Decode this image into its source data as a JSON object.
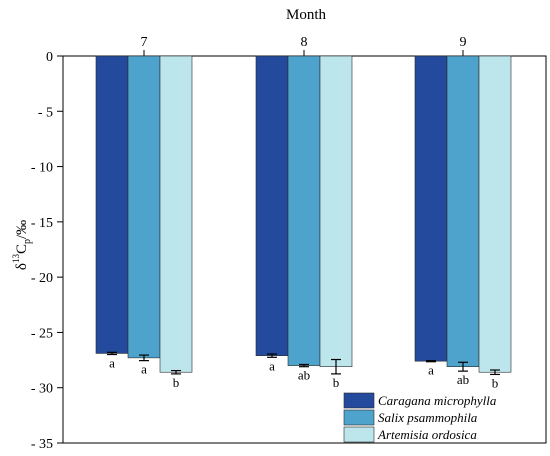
{
  "chart_data": {
    "type": "bar",
    "xlabel": "Month",
    "ylabel": "δ13Cp/‰",
    "ylabel_parts": {
      "delta": "δ",
      "sup": "13",
      "c": "C",
      "sub": "p",
      "unit": "/‰"
    },
    "ylim": [
      -35,
      0
    ],
    "yticks": [
      0,
      -5,
      -10,
      -15,
      -20,
      -25,
      -30,
      -35
    ],
    "grid": false,
    "legend_position": "bottom-right",
    "categories": [
      "7",
      "8",
      "9"
    ],
    "series": [
      {
        "name": "Caragana microphylla",
        "color": "#234a9c",
        "values": [
          -26.9,
          -27.1,
          -27.6
        ],
        "errors": [
          0.1,
          0.15,
          0.05
        ],
        "letters": [
          "a",
          "a",
          "a"
        ]
      },
      {
        "name": "Salix psammophila",
        "color": "#4ea3cc",
        "values": [
          -27.3,
          -28.0,
          -28.1
        ],
        "errors": [
          0.25,
          0.1,
          0.4
        ],
        "letters": [
          "a",
          "ab",
          "ab"
        ]
      },
      {
        "name": "Artemisia ordosica",
        "color": "#bde5ec",
        "values": [
          -28.6,
          -28.1,
          -28.6
        ],
        "errors": [
          0.15,
          0.65,
          0.2
        ],
        "letters": [
          "b",
          "b",
          "b"
        ]
      }
    ]
  }
}
